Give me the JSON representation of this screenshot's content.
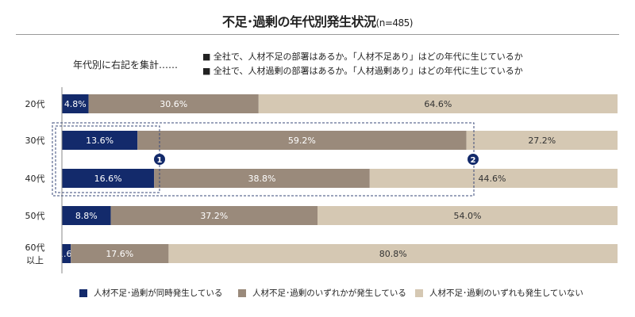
{
  "title": "不足･過剰の年代別発生状況",
  "title_n": "(n=485)",
  "lead": "年代別に右記を集計……",
  "notes": [
    "■ 全社で、人材不足の部署はあるか。「人材不足あり」はどの年代に生じているか",
    "■ 全社で、人材過剰の部署はあるか。「人材過剰あり」はどの年代に生じているか"
  ],
  "markers": [
    "1",
    "2"
  ],
  "colors": {
    "both": "#132a6b",
    "either": "#9a8a7b",
    "neither": "#d5c8b3"
  },
  "chart_data": {
    "type": "bar",
    "orientation": "horizontal",
    "stacked": true,
    "categories": [
      "20代",
      "30代",
      "40代",
      "50代",
      "60代\n以上"
    ],
    "series": [
      {
        "name": "人材不足･過剰が同時発生している",
        "values": [
          4.8,
          13.6,
          16.6,
          8.8,
          1.6
        ]
      },
      {
        "name": "人材不足･過剰のいずれかが発生している",
        "values": [
          30.6,
          59.2,
          38.8,
          37.2,
          17.6
        ]
      },
      {
        "name": "人材不足･過剰のいずれも発生していない",
        "values": [
          64.6,
          27.2,
          44.6,
          54.0,
          80.8
        ]
      }
    ],
    "xlim": [
      0,
      100
    ],
    "grid": false,
    "legend": "bottom",
    "data_labels": true
  }
}
